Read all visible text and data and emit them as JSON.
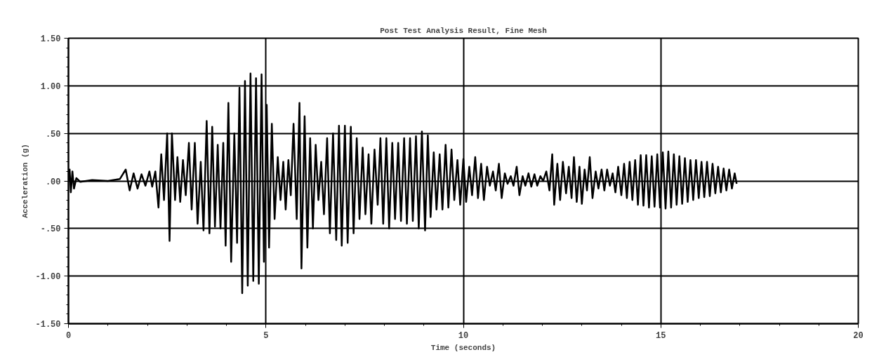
{
  "chart_data": {
    "type": "line",
    "title": "Post Test Analysis Result, Fine Mesh",
    "xlabel": "Time (seconds)",
    "ylabel": "Acceleration (g)",
    "xlim": [
      0,
      20
    ],
    "ylim": [
      -1.5,
      1.5
    ],
    "xticks": [
      0,
      5,
      10,
      15,
      20
    ],
    "yticks": [
      {
        "value": 1.5,
        "label": "1.50"
      },
      {
        "value": 1.0,
        "label": "1.00"
      },
      {
        "value": 0.5,
        "label": ".50"
      },
      {
        "value": 0.0,
        "label": ".00"
      },
      {
        "value": -0.5,
        "label": "-.50"
      },
      {
        "value": -1.0,
        "label": "-1.00"
      },
      {
        "value": -1.5,
        "label": "-1.50"
      }
    ],
    "grid": true,
    "marker": "none",
    "line_style": "solid",
    "series": [
      {
        "color": "#000000",
        "x": [
          0.0,
          0.03,
          0.06,
          0.1,
          0.14,
          0.2,
          0.3,
          0.6,
          1.0,
          1.3,
          1.45,
          1.55,
          1.65,
          1.75,
          1.85,
          1.95,
          2.05,
          2.12,
          2.2,
          2.28,
          2.35,
          2.42,
          2.5,
          2.56,
          2.62,
          2.7,
          2.76,
          2.83,
          2.9,
          2.97,
          3.05,
          3.12,
          3.2,
          3.27,
          3.35,
          3.42,
          3.5,
          3.57,
          3.64,
          3.71,
          3.78,
          3.85,
          3.92,
          3.98,
          4.05,
          4.12,
          4.2,
          4.27,
          4.33,
          4.4,
          4.47,
          4.54,
          4.61,
          4.68,
          4.75,
          4.82,
          4.89,
          4.95,
          5.02,
          5.08,
          5.15,
          5.22,
          5.3,
          5.37,
          5.44,
          5.5,
          5.57,
          5.63,
          5.7,
          5.78,
          5.85,
          5.9,
          5.98,
          6.05,
          6.12,
          6.19,
          6.26,
          6.33,
          6.4,
          6.47,
          6.55,
          6.62,
          6.7,
          6.78,
          6.85,
          6.92,
          7.0,
          7.07,
          7.15,
          7.22,
          7.3,
          7.37,
          7.45,
          7.52,
          7.6,
          7.67,
          7.75,
          7.83,
          7.9,
          7.97,
          8.05,
          8.12,
          8.2,
          8.27,
          8.35,
          8.42,
          8.5,
          8.57,
          8.65,
          8.72,
          8.8,
          8.87,
          8.95,
          9.03,
          9.1,
          9.17,
          9.25,
          9.32,
          9.4,
          9.47,
          9.55,
          9.62,
          9.7,
          9.77,
          9.85,
          9.92,
          10.0,
          10.07,
          10.15,
          10.22,
          10.3,
          10.37,
          10.45,
          10.52,
          10.6,
          10.67,
          10.75,
          10.82,
          10.9,
          10.97,
          11.05,
          11.12,
          11.2,
          11.27,
          11.35,
          11.42,
          11.5,
          11.57,
          11.65,
          11.72,
          11.8,
          11.87,
          11.95,
          12.02,
          12.1,
          12.18,
          12.25,
          12.3,
          12.38,
          12.45,
          12.52,
          12.6,
          12.67,
          12.74,
          12.8,
          12.87,
          12.94,
          13.0,
          13.07,
          13.13,
          13.2,
          13.27,
          13.35,
          13.42,
          13.5,
          13.57,
          13.64,
          13.71,
          13.78,
          13.85,
          13.92,
          14.0,
          14.07,
          14.14,
          14.21,
          14.28,
          14.35,
          14.42,
          14.49,
          14.56,
          14.63,
          14.7,
          14.77,
          14.84,
          14.91,
          14.98,
          15.05,
          15.12,
          15.19,
          15.26,
          15.33,
          15.4,
          15.47,
          15.54,
          15.61,
          15.68,
          15.75,
          15.82,
          15.89,
          15.96,
          16.03,
          16.1,
          16.17,
          16.24,
          16.31,
          16.38,
          16.45,
          16.52,
          16.59,
          16.66,
          16.73,
          16.8,
          16.87,
          16.92
        ],
        "values": [
          0.0,
          0.12,
          -0.12,
          0.1,
          -0.08,
          0.03,
          -0.01,
          0.01,
          0.0,
          0.02,
          0.12,
          -0.1,
          0.08,
          -0.08,
          0.07,
          -0.05,
          0.1,
          -0.06,
          0.1,
          -0.28,
          0.28,
          -0.2,
          0.5,
          -0.63,
          0.5,
          -0.2,
          0.25,
          -0.22,
          0.22,
          -0.15,
          0.4,
          -0.3,
          0.4,
          -0.45,
          0.2,
          -0.52,
          0.63,
          -0.55,
          0.57,
          -0.48,
          0.38,
          -0.5,
          0.4,
          -0.68,
          0.82,
          -0.85,
          0.5,
          -0.65,
          0.98,
          -1.18,
          1.05,
          -1.1,
          1.13,
          -1.05,
          1.08,
          -1.08,
          1.12,
          -0.85,
          0.8,
          -0.7,
          0.6,
          -0.4,
          0.25,
          -0.2,
          0.2,
          -0.3,
          0.22,
          -0.15,
          0.6,
          -0.4,
          0.82,
          -0.92,
          0.68,
          -0.7,
          0.45,
          -0.5,
          0.38,
          -0.2,
          0.2,
          -0.35,
          0.45,
          -0.55,
          0.5,
          -0.62,
          0.58,
          -0.68,
          0.58,
          -0.65,
          0.57,
          -0.55,
          0.45,
          -0.4,
          0.35,
          -0.35,
          0.28,
          -0.45,
          0.33,
          -0.25,
          0.45,
          -0.45,
          0.45,
          -0.5,
          0.4,
          -0.4,
          0.4,
          -0.42,
          0.45,
          -0.45,
          0.45,
          -0.42,
          0.47,
          -0.5,
          0.52,
          -0.52,
          0.48,
          -0.38,
          0.3,
          -0.3,
          0.28,
          -0.3,
          0.38,
          -0.28,
          0.33,
          -0.2,
          0.22,
          -0.25,
          0.23,
          -0.22,
          0.15,
          -0.15,
          0.25,
          -0.18,
          0.18,
          -0.2,
          0.15,
          -0.05,
          0.1,
          -0.1,
          0.18,
          -0.18,
          0.08,
          -0.03,
          0.05,
          -0.05,
          0.15,
          -0.15,
          0.05,
          -0.05,
          0.08,
          -0.06,
          0.07,
          -0.05,
          0.05,
          0.0,
          0.1,
          -0.1,
          0.28,
          -0.25,
          0.18,
          -0.2,
          0.2,
          -0.13,
          0.15,
          -0.18,
          0.25,
          -0.22,
          0.15,
          -0.24,
          0.12,
          -0.1,
          0.25,
          -0.18,
          0.1,
          -0.08,
          0.12,
          -0.1,
          0.12,
          -0.05,
          0.08,
          -0.12,
          0.15,
          -0.15,
          0.18,
          -0.18,
          0.2,
          -0.2,
          0.22,
          -0.25,
          0.27,
          -0.26,
          0.27,
          -0.28,
          0.26,
          -0.27,
          0.28,
          -0.28,
          0.3,
          -0.29,
          0.31,
          -0.28,
          0.28,
          -0.25,
          0.26,
          -0.24,
          0.24,
          -0.22,
          0.22,
          -0.2,
          0.22,
          -0.18,
          0.2,
          -0.17,
          0.2,
          -0.16,
          0.18,
          -0.13,
          0.15,
          -0.12,
          0.13,
          -0.1,
          0.12,
          -0.08,
          0.08,
          -0.03
        ]
      }
    ]
  }
}
